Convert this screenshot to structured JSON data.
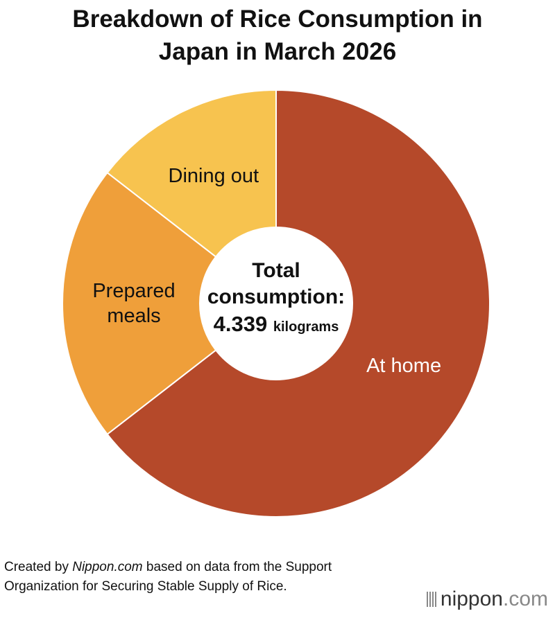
{
  "chart_data": {
    "type": "donut",
    "title": "Breakdown of Rice Consumption in Japan in March 2026",
    "categories": [
      "At home",
      "Prepared meals",
      "Dining out"
    ],
    "values": [
      64.5,
      21,
      14.5
    ],
    "colors": [
      "#b5492a",
      "#ef9f3a",
      "#f7c34f"
    ],
    "label_colors": [
      "#ffffff",
      "#111111",
      "#111111"
    ],
    "center_label": "Total consumption:",
    "total": 4.339,
    "total_unit": "kilograms"
  },
  "source": {
    "prefix": "Created by ",
    "site": "Nippon.com",
    "suffix": " based on data from the Support Organization for Securing Stable Supply of Rice."
  },
  "logo": {
    "name": "nippon",
    "domain": ".com"
  }
}
